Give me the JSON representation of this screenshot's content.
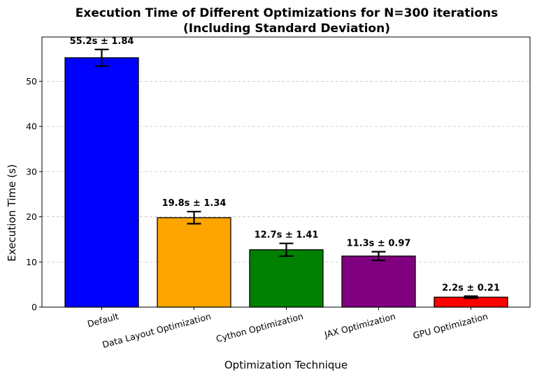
{
  "chart_data": {
    "type": "bar",
    "title": "Execution Time of Different Optimizations for N=300 iterations",
    "subtitle": "(Including Standard Deviation)",
    "xlabel": "Optimization Technique",
    "ylabel": "Execution Time (s)",
    "ylim": [
      0,
      59.8
    ],
    "yticks": [
      0,
      10,
      20,
      30,
      40,
      50
    ],
    "grid": "y-dashed",
    "categories": [
      "Default",
      "Data Layout Optimization",
      "Cython Optimization",
      "JAX Optimization",
      "GPU Optimization"
    ],
    "values": [
      55.2,
      19.8,
      12.7,
      11.3,
      2.2
    ],
    "errors": [
      1.84,
      1.34,
      1.41,
      0.97,
      0.21
    ],
    "data_labels": [
      "55.2s ± 1.84",
      "19.8s ± 1.34",
      "12.7s ± 1.41",
      "11.3s ± 0.97",
      "2.2s ± 0.21"
    ],
    "colors": [
      "#0000ff",
      "#ffa500",
      "#008000",
      "#800080",
      "#ff0000"
    ]
  }
}
